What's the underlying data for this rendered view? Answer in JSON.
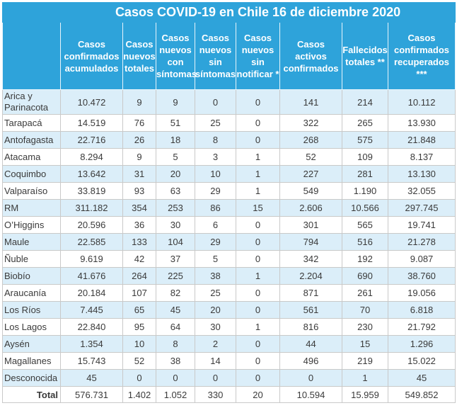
{
  "title": "Casos COVID-19 en Chile 16 de diciembre 2020",
  "headers": [
    "Casos confirmados acumulados",
    "Casos nuevos totales",
    "Casos nuevos con síntomas",
    "Casos nuevos sin síntomas",
    "Casos nuevos sin notificar *",
    "Casos activos confirmados",
    "Fallecidos totales **",
    "Casos confirmados recuperados ***"
  ],
  "rows": [
    {
      "region": "Arica y Parinacota",
      "values": [
        "10.472",
        "9",
        "9",
        "0",
        "0",
        "141",
        "214",
        "10.112"
      ]
    },
    {
      "region": "Tarapacá",
      "values": [
        "14.519",
        "76",
        "51",
        "25",
        "0",
        "322",
        "265",
        "13.930"
      ]
    },
    {
      "region": "Antofagasta",
      "values": [
        "22.716",
        "26",
        "18",
        "8",
        "0",
        "268",
        "575",
        "21.848"
      ]
    },
    {
      "region": "Atacama",
      "values": [
        "8.294",
        "9",
        "5",
        "3",
        "1",
        "52",
        "109",
        "8.137"
      ]
    },
    {
      "region": "Coquimbo",
      "values": [
        "13.642",
        "31",
        "20",
        "10",
        "1",
        "227",
        "281",
        "13.130"
      ]
    },
    {
      "region": "Valparaíso",
      "values": [
        "33.819",
        "93",
        "63",
        "29",
        "1",
        "549",
        "1.190",
        "32.055"
      ]
    },
    {
      "region": "RM",
      "values": [
        "311.182",
        "354",
        "253",
        "86",
        "15",
        "2.606",
        "10.566",
        "297.745"
      ]
    },
    {
      "region": "O’Higgins",
      "values": [
        "20.596",
        "36",
        "30",
        "6",
        "0",
        "301",
        "565",
        "19.741"
      ]
    },
    {
      "region": "Maule",
      "values": [
        "22.585",
        "133",
        "104",
        "29",
        "0",
        "794",
        "516",
        "21.278"
      ]
    },
    {
      "region": "Ñuble",
      "values": [
        "9.619",
        "42",
        "37",
        "5",
        "0",
        "342",
        "192",
        "9.087"
      ]
    },
    {
      "region": "Biobío",
      "values": [
        "41.676",
        "264",
        "225",
        "38",
        "1",
        "2.204",
        "690",
        "38.760"
      ]
    },
    {
      "region": "Araucanía",
      "values": [
        "20.184",
        "107",
        "82",
        "25",
        "0",
        "871",
        "261",
        "19.056"
      ]
    },
    {
      "region": "Los Ríos",
      "values": [
        "7.445",
        "65",
        "45",
        "20",
        "0",
        "561",
        "70",
        "6.818"
      ]
    },
    {
      "region": "Los Lagos",
      "values": [
        "22.840",
        "95",
        "64",
        "30",
        "1",
        "816",
        "230",
        "21.792"
      ]
    },
    {
      "region": "Aysén",
      "values": [
        "1.354",
        "10",
        "8",
        "2",
        "0",
        "44",
        "15",
        "1.296"
      ]
    },
    {
      "region": "Magallanes",
      "values": [
        "15.743",
        "52",
        "38",
        "14",
        "0",
        "496",
        "219",
        "15.022"
      ]
    },
    {
      "region": "Desconocida",
      "values": [
        "45",
        "0",
        "0",
        "0",
        "0",
        "0",
        "1",
        "45"
      ]
    }
  ],
  "total": {
    "label": "Total",
    "values": [
      "576.731",
      "1.402",
      "1.052",
      "330",
      "20",
      "10.594",
      "15.959",
      "549.852"
    ]
  },
  "colors": {
    "header_bg": "#2ea3da",
    "row_shade": "#dbeef9",
    "border": "#c9c9c9"
  }
}
